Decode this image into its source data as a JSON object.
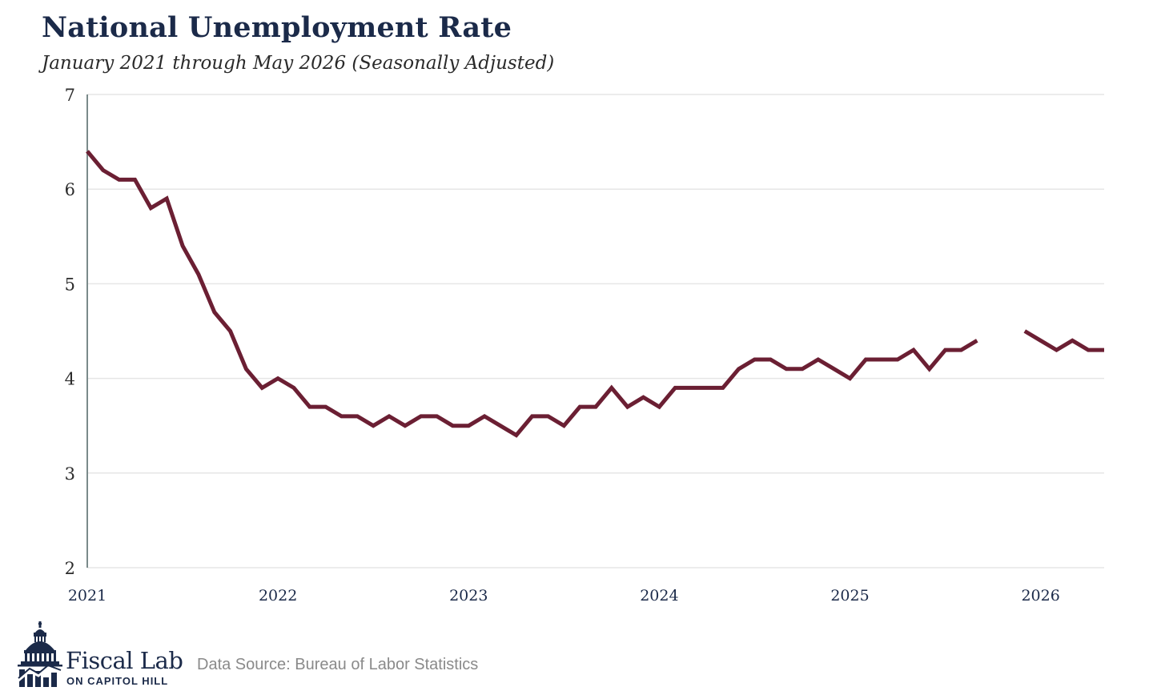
{
  "header": {
    "title": "National Unemployment Rate",
    "subtitle": "January 2021 through May 2026 (Seasonally Adjusted)"
  },
  "footer": {
    "brand_name": "Fiscal Lab",
    "brand_sub": "ON CAPITOL HILL",
    "source": "Data Source: Bureau of Labor Statistics"
  },
  "colors": {
    "line": "#6b1f33",
    "title": "#1b2a49",
    "grid": "#e6e6e6",
    "axis": "#7a8a8a"
  },
  "chart_data": {
    "type": "line",
    "title": "National Unemployment Rate",
    "subtitle": "January 2021 through May 2026 (Seasonally Adjusted)",
    "xlabel": "",
    "ylabel": "",
    "ylim": [
      2,
      7
    ],
    "yticks": [
      "7",
      "6",
      "5",
      "4",
      "3",
      "2"
    ],
    "xticks": [
      "2021",
      "2022",
      "2023",
      "2024",
      "2025",
      "2026"
    ],
    "xlim": [
      "2021-01",
      "2026-05"
    ],
    "grid": "horizontal",
    "series": [
      {
        "x": [
          "2021-01",
          "2021-02",
          "2021-03",
          "2021-04",
          "2021-05",
          "2021-06",
          "2021-07",
          "2021-08",
          "2021-09",
          "2021-10",
          "2021-11",
          "2021-12",
          "2022-01",
          "2022-02",
          "2022-03",
          "2022-04",
          "2022-05",
          "2022-06",
          "2022-07",
          "2022-08",
          "2022-09",
          "2022-10",
          "2022-11",
          "2022-12",
          "2023-01",
          "2023-02",
          "2023-03",
          "2023-04",
          "2023-05",
          "2023-06",
          "2023-07",
          "2023-08",
          "2023-09",
          "2023-10",
          "2023-11",
          "2023-12",
          "2024-01",
          "2024-02",
          "2024-03",
          "2024-04",
          "2024-05",
          "2024-06",
          "2024-07",
          "2024-08",
          "2024-09",
          "2024-10",
          "2024-11",
          "2024-12",
          "2025-01",
          "2025-02",
          "2025-03",
          "2025-04",
          "2025-05",
          "2025-06",
          "2025-07",
          "2025-08",
          "2025-09",
          "2025-10",
          "2025-11",
          "2025-12",
          "2026-01",
          "2026-02",
          "2026-03",
          "2026-04",
          "2026-05"
        ],
        "values": [
          6.4,
          6.2,
          6.1,
          6.1,
          5.8,
          5.9,
          5.4,
          5.1,
          4.7,
          4.5,
          4.1,
          3.9,
          4.0,
          3.9,
          3.7,
          3.7,
          3.6,
          3.6,
          3.5,
          3.6,
          3.5,
          3.6,
          3.6,
          3.5,
          3.5,
          3.6,
          3.5,
          3.4,
          3.6,
          3.6,
          3.5,
          3.7,
          3.7,
          3.9,
          3.7,
          3.8,
          3.7,
          3.9,
          3.9,
          3.9,
          3.9,
          4.1,
          4.2,
          4.2,
          4.1,
          4.1,
          4.2,
          4.1,
          4.0,
          4.2,
          4.2,
          4.2,
          4.3,
          4.1,
          4.3,
          4.3,
          4.4,
          null,
          null,
          4.5,
          4.4,
          4.3,
          4.4,
          4.3,
          4.3
        ]
      }
    ]
  }
}
